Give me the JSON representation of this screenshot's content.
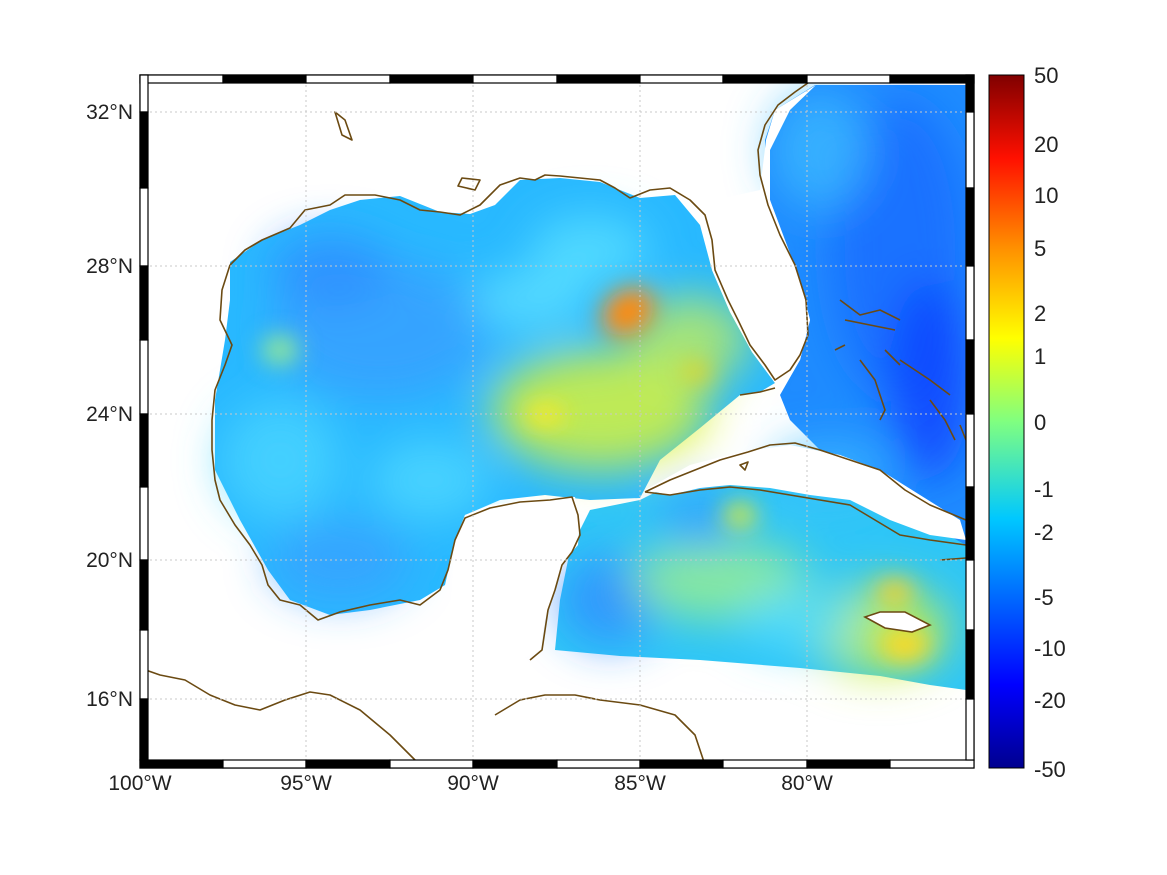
{
  "map": {
    "lon_labels": [
      "100°W",
      "95°W",
      "90°W",
      "85°W",
      "80°W"
    ],
    "lat_labels": [
      "32°N",
      "28°N",
      "24°N",
      "20°N",
      "16°N"
    ],
    "lon_range": [
      -100,
      -75
    ],
    "lat_range": [
      14.5,
      33
    ],
    "colors": {
      "coastline": "#6b4a12",
      "grid": "#c8c8c8",
      "frame": "#000000",
      "background": "#ffffff"
    }
  },
  "colorbar": {
    "tick_labels": [
      "50",
      "20",
      "10",
      "5",
      "2",
      "1",
      "0",
      "-1",
      "-2",
      "-5",
      "-10",
      "-20",
      "-50"
    ],
    "range": [
      -50,
      50
    ],
    "colormap": "jet",
    "scale": "symmetric-log"
  }
}
